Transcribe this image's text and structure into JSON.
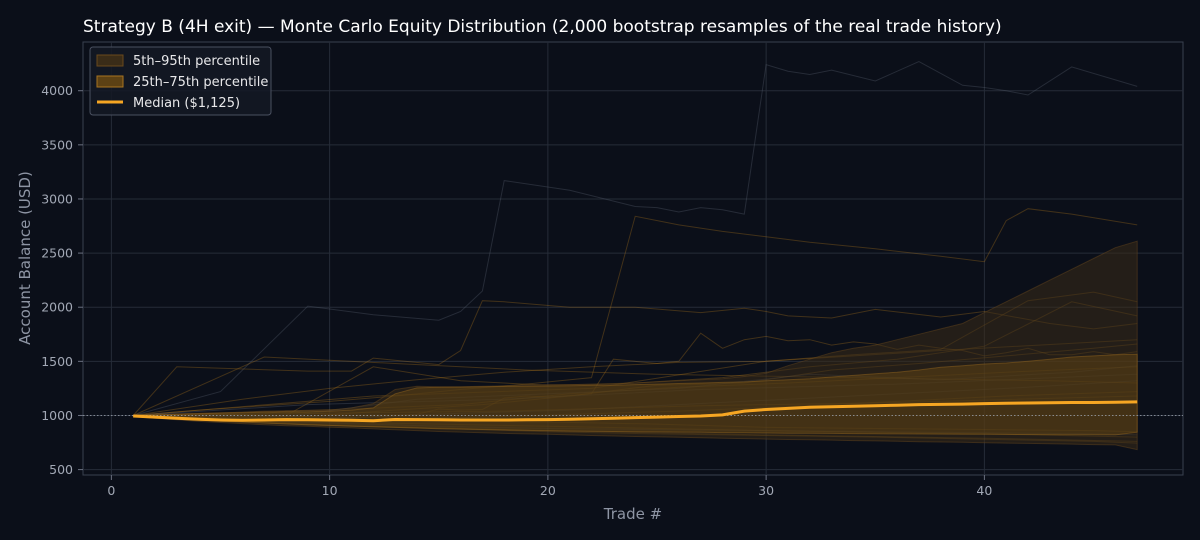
{
  "chart_data": {
    "type": "area",
    "title": "Strategy B (4H exit) — Monte Carlo Equity Distribution (2,000 bootstrap resamples of the real trade history)",
    "xlabel": "Trade #",
    "ylabel": "Account Balance (USD)",
    "xlim": [
      -1.3,
      49.1
    ],
    "ylim": [
      450,
      4450
    ],
    "xticks": [
      0,
      10,
      20,
      30,
      40
    ],
    "yticks": [
      500,
      1000,
      1500,
      2000,
      2500,
      3000,
      3500,
      4000
    ],
    "grid": true,
    "legend_position": "top-left",
    "baseline": 1000,
    "x": [
      1,
      2,
      3,
      4,
      5,
      6,
      7,
      8,
      9,
      10,
      11,
      12,
      13,
      14,
      15,
      16,
      17,
      18,
      19,
      20,
      21,
      22,
      23,
      24,
      25,
      26,
      27,
      28,
      29,
      30,
      31,
      32,
      33,
      34,
      35,
      36,
      37,
      38,
      39,
      40,
      41,
      42,
      43,
      44,
      45,
      46,
      47
    ],
    "series": [
      {
        "name": "5th–95th percentile",
        "role": "band_outer",
        "color": "#3a2c18",
        "lower": [
          990,
          975,
          960,
          945,
          935,
          925,
          915,
          905,
          900,
          892,
          885,
          876,
          868,
          860,
          852,
          846,
          840,
          834,
          830,
          826,
          820,
          815,
          810,
          806,
          802,
          798,
          794,
          790,
          786,
          782,
          778,
          775,
          772,
          768,
          765,
          762,
          758,
          755,
          752,
          748,
          745,
          742,
          738,
          735,
          731,
          728,
          685
        ],
        "upper": [
          1000,
          1010,
          1015,
          1020,
          1025,
          1030,
          1040,
          1040,
          1045,
          1050,
          1070,
          1110,
          1240,
          1270,
          1265,
          1265,
          1270,
          1275,
          1280,
          1285,
          1285,
          1285,
          1290,
          1300,
          1310,
          1320,
          1330,
          1340,
          1360,
          1390,
          1460,
          1520,
          1580,
          1620,
          1650,
          1700,
          1750,
          1800,
          1850,
          1950,
          2050,
          2150,
          2250,
          2350,
          2450,
          2550,
          2610
        ]
      },
      {
        "name": "25th–75th percentile",
        "role": "band_inner",
        "color": "#5c4114",
        "lower": [
          995,
          985,
          970,
          958,
          948,
          940,
          930,
          922,
          915,
          908,
          902,
          896,
          890,
          884,
          878,
          874,
          870,
          866,
          862,
          858,
          856,
          854,
          852,
          850,
          848,
          846,
          844,
          842,
          840,
          838,
          836,
          835,
          834,
          832,
          831,
          830,
          829,
          828,
          827,
          826,
          825,
          824,
          823,
          822,
          821,
          820,
          845
        ],
        "upper": [
          1000,
          1005,
          1010,
          1015,
          1020,
          1025,
          1030,
          1032,
          1035,
          1040,
          1050,
          1070,
          1200,
          1255,
          1260,
          1262,
          1265,
          1268,
          1270,
          1272,
          1275,
          1278,
          1280,
          1285,
          1290,
          1295,
          1300,
          1305,
          1310,
          1320,
          1330,
          1340,
          1355,
          1370,
          1385,
          1400,
          1420,
          1445,
          1460,
          1475,
          1485,
          1500,
          1520,
          1540,
          1550,
          1560,
          1565
        ]
      },
      {
        "name": "Median ($1,125)",
        "role": "median",
        "color": "#f6a623",
        "values": [
          995,
          985,
          975,
          965,
          958,
          955,
          958,
          962,
          960,
          958,
          955,
          952,
          963,
          962,
          960,
          958,
          958,
          958,
          960,
          962,
          965,
          970,
          975,
          980,
          985,
          990,
          995,
          1005,
          1040,
          1055,
          1065,
          1075,
          1080,
          1085,
          1090,
          1095,
          1100,
          1102,
          1105,
          1110,
          1112,
          1115,
          1118,
          1120,
          1120,
          1122,
          1125
        ]
      }
    ],
    "sample_paths": [
      {
        "x": [
          1,
          3,
          5,
          6,
          7,
          8,
          10,
          11,
          13,
          14,
          15,
          16,
          17,
          18,
          19,
          20,
          22,
          23,
          25,
          26,
          27,
          28,
          29,
          30,
          31,
          32,
          33,
          34,
          35,
          36,
          37,
          38,
          39,
          40,
          41,
          42,
          43,
          44,
          45,
          46,
          47
        ],
        "values": [
          1000,
          1000,
          1005,
          1010,
          1015,
          1040,
          1010,
          1000,
          1005,
          1010,
          1060,
          1050,
          1055,
          1160,
          1180,
          1170,
          1200,
          1520,
          1480,
          1500,
          1760,
          1620,
          1700,
          1730,
          1690,
          1700,
          1650,
          1680,
          1660,
          1610,
          1650,
          1620,
          1600,
          1550,
          1580,
          1620,
          1560,
          1560,
          1590,
          1560,
          1590
        ]
      },
      {
        "x": [
          1,
          3,
          9,
          11,
          12,
          15,
          16,
          17,
          18,
          21,
          24,
          27,
          29,
          30,
          31,
          33,
          35,
          38,
          40,
          43,
          45,
          47
        ],
        "values": [
          1000,
          1450,
          1410,
          1410,
          1530,
          1470,
          1600,
          2060,
          2050,
          2000,
          2000,
          1950,
          1990,
          1960,
          1920,
          1900,
          1980,
          1910,
          1960,
          1850,
          1800,
          1850
        ]
      },
      {
        "x": [
          1,
          5,
          9,
          12,
          15,
          16,
          17,
          18,
          21,
          24,
          25,
          26,
          27,
          28,
          29,
          30,
          31,
          32,
          33,
          35,
          37,
          39,
          40,
          41,
          42,
          44,
          47
        ],
        "values": [
          1000,
          1220,
          2010,
          1930,
          1880,
          1960,
          2150,
          3170,
          3080,
          2930,
          2920,
          2880,
          2920,
          2900,
          2860,
          4240,
          4180,
          4150,
          4190,
          4090,
          4270,
          4050,
          4030,
          4000,
          3960,
          4220,
          4040
        ]
      },
      {
        "x": [
          1,
          4,
          7,
          10,
          13,
          16,
          19,
          22,
          24,
          26,
          28,
          30,
          32,
          35,
          38,
          40,
          41,
          42,
          44,
          47
        ],
        "values": [
          1000,
          1050,
          1090,
          1130,
          1180,
          1240,
          1290,
          1350,
          2840,
          2760,
          2700,
          2650,
          2600,
          2540,
          2470,
          2420,
          2800,
          2910,
          2860,
          2760
        ]
      },
      {
        "x": [
          1,
          6,
          10,
          14,
          18,
          22,
          26,
          30,
          34,
          38,
          42,
          45,
          47
        ],
        "values": [
          1000,
          1150,
          1250,
          1330,
          1400,
          1450,
          1490,
          1500,
          1560,
          1610,
          2060,
          2140,
          2050
        ]
      },
      {
        "x": [
          1,
          4,
          8,
          12,
          16,
          20,
          24,
          28,
          32,
          36,
          40,
          44,
          47
        ],
        "values": [
          1000,
          980,
          1000,
          1450,
          1320,
          1280,
          1300,
          1350,
          1450,
          1520,
          1640,
          2050,
          1920
        ]
      },
      {
        "x": [
          1,
          5,
          10,
          15,
          20,
          25,
          30,
          35,
          40,
          45,
          47
        ],
        "values": [
          1000,
          960,
          930,
          900,
          880,
          870,
          860,
          850,
          840,
          830,
          820
        ]
      },
      {
        "x": [
          1,
          5,
          10,
          15,
          20,
          25,
          30,
          35,
          40,
          45,
          47
        ],
        "values": [
          1000,
          945,
          905,
          880,
          850,
          830,
          815,
          800,
          780,
          760,
          745
        ]
      },
      {
        "x": [
          1,
          5,
          10,
          15,
          20,
          25,
          30,
          35,
          40,
          45,
          47
        ],
        "values": [
          1000,
          985,
          970,
          950,
          940,
          920,
          890,
          880,
          870,
          860,
          850
        ]
      },
      {
        "x": [
          1,
          6,
          11,
          16,
          21,
          26,
          31,
          36,
          41,
          47
        ],
        "values": [
          1000,
          1030,
          1060,
          1100,
          1200,
          1260,
          1300,
          1350,
          1400,
          1450
        ]
      },
      {
        "x": [
          1,
          6,
          11,
          16,
          21,
          26,
          31,
          36,
          41,
          47
        ],
        "values": [
          1000,
          1000,
          980,
          1020,
          1050,
          1100,
          1150,
          1200,
          1250,
          1320
        ]
      },
      {
        "x": [
          1,
          6,
          11,
          16,
          21,
          26,
          31,
          36,
          41,
          47
        ],
        "values": [
          1000,
          960,
          960,
          980,
          1010,
          1040,
          1080,
          1130,
          1180,
          1220
        ]
      },
      {
        "x": [
          1,
          5,
          9,
          13,
          17,
          21,
          25,
          29,
          33,
          37,
          41,
          45,
          47
        ],
        "values": [
          1000,
          1010,
          990,
          1050,
          1100,
          1180,
          1280,
          1300,
          1420,
          1480,
          1550,
          1620,
          1660
        ]
      },
      {
        "x": [
          1,
          7,
          13,
          19,
          25,
          31,
          37,
          43,
          47
        ],
        "values": [
          1000,
          1540,
          1480,
          1420,
          1380,
          1360,
          1340,
          1320,
          1300
        ]
      },
      {
        "x": [
          1,
          8,
          14,
          20,
          26,
          32,
          38,
          44,
          47
        ],
        "values": [
          1000,
          990,
          1150,
          1200,
          1250,
          1380,
          1330,
          1400,
          1460
        ]
      },
      {
        "x": [
          1,
          10,
          20,
          30,
          40,
          47
        ],
        "values": [
          1000,
          940,
          900,
          860,
          830,
          800
        ]
      },
      {
        "x": [
          1,
          10,
          20,
          30,
          40,
          47
        ],
        "values": [
          1000,
          910,
          860,
          820,
          790,
          760
        ]
      },
      {
        "x": [
          1,
          12,
          22,
          30,
          38,
          47
        ],
        "values": [
          1000,
          1180,
          1250,
          1500,
          1600,
          1700
        ]
      },
      {
        "x": [
          1,
          9,
          18,
          27,
          36,
          47
        ],
        "values": [
          1000,
          1100,
          1150,
          1240,
          1290,
          1380
        ]
      },
      {
        "x": [
          1,
          9,
          18,
          27,
          36,
          47
        ],
        "values": [
          1000,
          1020,
          1040,
          1090,
          1120,
          1180
        ]
      }
    ]
  }
}
